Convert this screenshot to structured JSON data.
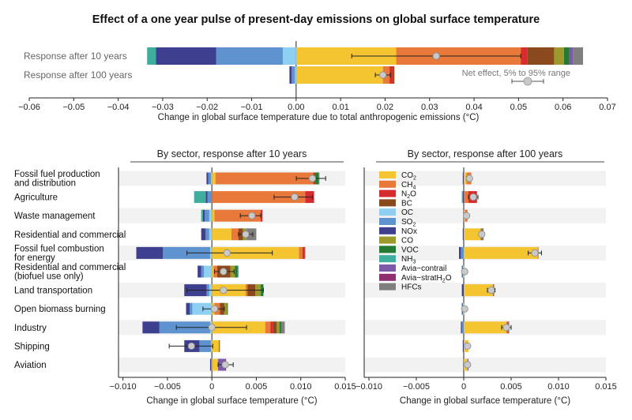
{
  "title": "Effect of a one year pulse of present-day emissions on global surface temperature",
  "colors": {
    "CO2": "#f5c531",
    "CH4": "#e8793a",
    "N2O": "#d62b2f",
    "BC": "#8b4a1e",
    "OC": "#8fd0f2",
    "SO2": "#5e93cf",
    "NOx": "#3f3f8f",
    "CO": "#9c9a2c",
    "VOC": "#227a33",
    "NH3": "#3fae9c",
    "Avia-contrail": "#7c5aa6",
    "Avia-stratH2O": "#8f2f6f",
    "HFCs": "#7f7f7f"
  },
  "legend": {
    "items": [
      {
        "key": "CO2",
        "label": "CO",
        "sub": "2"
      },
      {
        "key": "CH4",
        "label": "CH",
        "sub": "4"
      },
      {
        "key": "N2O",
        "label": "N",
        "sub": "2",
        "post": "O"
      },
      {
        "key": "BC",
        "label": "BC"
      },
      {
        "key": "OC",
        "label": "OC"
      },
      {
        "key": "SO2",
        "label": "SO",
        "sub": "2"
      },
      {
        "key": "NOx",
        "label": "NOx"
      },
      {
        "key": "CO",
        "label": "CO"
      },
      {
        "key": "VOC",
        "label": "VOC"
      },
      {
        "key": "NH3",
        "label": "NH",
        "sub": "3"
      },
      {
        "key": "Avia-contrail",
        "label": "Avia−contrail"
      },
      {
        "key": "Avia-stratH2O",
        "label": "Avia−stratH",
        "sub": "2",
        "post": "O"
      },
      {
        "key": "HFCs",
        "label": "HFCs"
      }
    ]
  },
  "net_effect_label": "Net effect, 5% to 95% range",
  "chart_data": [
    {
      "type": "bar",
      "stacked": "diverging",
      "orientation": "horizontal",
      "xlabel": "Change in global surface temperature due to total anthropogenic emissions (°C)",
      "xlim": [
        -0.06,
        0.07
      ],
      "xticks": [
        -0.06,
        -0.05,
        -0.04,
        -0.03,
        -0.02,
        -0.01,
        0,
        0.01,
        0.02,
        0.03,
        0.04,
        0.05,
        0.06,
        0.07
      ],
      "xtick_labels": [
        "−0.06",
        "−0.05",
        "−0.04",
        "−0.03",
        "−0.02",
        "−0.01",
        "0.00",
        "0.01",
        "0.02",
        "0.03",
        "0.04",
        "0.05",
        "0.06",
        "0.07"
      ],
      "categories": [
        "Response after 10 years",
        "Response after 100 years"
      ],
      "rows": [
        {
          "label": "Response after 10 years",
          "net": 0.0315,
          "range": [
            0.0125,
            0.0505
          ],
          "pos": [
            [
              "CO2",
              0.0225
            ],
            [
              "CH4",
              0.028
            ],
            [
              "N2O",
              0.0015
            ],
            [
              "BC",
              0.006
            ],
            [
              "CO",
              0.0022
            ],
            [
              "VOC",
              0.0012
            ],
            [
              "Avia-contrail",
              0.0008
            ],
            [
              "HFCs",
              0.0023
            ]
          ],
          "neg": [
            [
              "OC",
              0.003
            ],
            [
              "SO2",
              0.015
            ],
            [
              "NOx",
              0.0135
            ],
            [
              "NH3",
              0.002
            ]
          ]
        },
        {
          "label": "Response after 100 years",
          "net": 0.0195,
          "range": [
            0.0178,
            0.0212
          ],
          "pos": [
            [
              "CO2",
              0.0195
            ],
            [
              "CH4",
              0.0015
            ],
            [
              "N2O",
              0.0008
            ],
            [
              "BC",
              0.0003
            ]
          ],
          "neg": [
            [
              "OC",
              0.0003
            ],
            [
              "SO2",
              0.0007
            ],
            [
              "NOx",
              0.0005
            ]
          ]
        }
      ]
    },
    {
      "type": "bar",
      "stacked": "diverging",
      "orientation": "horizontal",
      "title": "By sector, response after 10 years",
      "xlabel": "Change in global surface temperature (°C)",
      "xlim": [
        -0.0105,
        0.015
      ],
      "xticks": [
        -0.01,
        -0.005,
        0,
        0.005,
        0.01,
        0.015
      ],
      "xtick_labels": [
        "−0.010",
        "−0.005",
        "0",
        "0.005",
        "0.010",
        "0.015"
      ],
      "categories": [
        "Fossil fuel production and distribution",
        "Agriculture",
        "Waste management",
        "Residential and commercial",
        "Fossil fuel combustion for energy",
        "Residential and commercial (biofuel use only)",
        "Land transportation",
        "Open biomass burning",
        "Industry",
        "Shipping",
        "Aviation"
      ],
      "rows": [
        {
          "label": "Fossil fuel production\nand distribution",
          "net": 0.0113,
          "range": [
            0.0095,
            0.0128
          ],
          "pos": [
            [
              "CO2",
              0.0004
            ],
            [
              "CH4",
              0.011
            ],
            [
              "N2O",
              0.0001
            ],
            [
              "BC",
              0.0002
            ],
            [
              "VOC",
              0.0003
            ],
            [
              "HFCs",
              0.0001
            ]
          ],
          "neg": [
            [
              "OC",
              0.0001
            ],
            [
              "SO2",
              0.0003
            ],
            [
              "NOx",
              0.0002
            ]
          ]
        },
        {
          "label": "Agriculture",
          "net": 0.0093,
          "range": [
            0.007,
            0.0113
          ],
          "pos": [
            [
              "CH4",
              0.0105
            ],
            [
              "N2O",
              0.001
            ]
          ],
          "neg": [
            [
              "SO2",
              0.0005
            ],
            [
              "NOx",
              0.0002
            ],
            [
              "NH3",
              0.0013
            ]
          ]
        },
        {
          "label": "Waste management",
          "net": 0.0045,
          "range": [
            0.0032,
            0.0055
          ],
          "pos": [
            [
              "CO2",
              0.0003
            ],
            [
              "CH4",
              0.0052
            ],
            [
              "N2O",
              0.0002
            ]
          ],
          "neg": [
            [
              "OC",
              0.0003
            ],
            [
              "SO2",
              0.0005
            ],
            [
              "NOx",
              0.0002
            ],
            [
              "NH3",
              0.0002
            ]
          ]
        },
        {
          "label": "Residential and commercial",
          "net": 0.0038,
          "range": [
            0.003,
            0.0046
          ],
          "pos": [
            [
              "CO2",
              0.0022
            ],
            [
              "CH4",
              0.0008
            ],
            [
              "BC",
              0.0005
            ],
            [
              "CO",
              0.0004
            ],
            [
              "HFCs",
              0.0011
            ]
          ],
          "neg": [
            [
              "OC",
              0.0003
            ],
            [
              "SO2",
              0.0004
            ],
            [
              "NOx",
              0.0005
            ]
          ]
        },
        {
          "label": "Fossil fuel combustion\nfor energy",
          "net": 0.0017,
          "range": [
            -0.0028,
            0.0068
          ],
          "pos": [
            [
              "CO2",
              0.0098
            ],
            [
              "CH4",
              0.0004
            ],
            [
              "N2O",
              0.0002
            ],
            [
              "BC",
              0.0001
            ]
          ],
          "neg": [
            [
              "OC",
              0.0002
            ],
            [
              "SO2",
              0.0053
            ],
            [
              "NOx",
              0.003
            ]
          ]
        },
        {
          "label": "Residential and commercial\n(biofuel use only)",
          "net": 0.0013,
          "range": [
            0.0003,
            0.0025
          ],
          "pos": [
            [
              "CO2",
              0.0002
            ],
            [
              "CH4",
              0.0004
            ],
            [
              "BC",
              0.0015
            ],
            [
              "CO",
              0.0005
            ],
            [
              "VOC",
              0.0003
            ],
            [
              "NH3",
              0.0001
            ]
          ],
          "neg": [
            [
              "OC",
              0.0009
            ],
            [
              "SO2",
              0.0003
            ],
            [
              "NOx",
              0.0004
            ]
          ]
        },
        {
          "label": "Land transportation",
          "net": 0.0013,
          "range": [
            -0.0028,
            0.0058
          ],
          "pos": [
            [
              "CO2",
              0.0038
            ],
            [
              "CH4",
              0.0002
            ],
            [
              "BC",
              0.0009
            ],
            [
              "CO",
              0.0006
            ],
            [
              "VOC",
              0.0003
            ]
          ],
          "neg": [
            [
              "OC",
              0.0003
            ],
            [
              "SO2",
              0.0003
            ],
            [
              "NOx",
              0.0025
            ]
          ]
        },
        {
          "label": "Open biomass burning",
          "net": 0.0003,
          "range": [
            -0.001,
            0.0014
          ],
          "pos": [
            [
              "CO2",
              0.0003
            ],
            [
              "CH4",
              0.0006
            ],
            [
              "BC",
              0.0005
            ],
            [
              "CO",
              0.0003
            ],
            [
              "VOC",
              0.0001
            ]
          ],
          "neg": [
            [
              "OC",
              0.0022
            ],
            [
              "SO2",
              0.0003
            ],
            [
              "NOx",
              0.0004
            ]
          ]
        },
        {
          "label": "Industry",
          "net": 0.0,
          "range": [
            -0.004,
            0.0039
          ],
          "pos": [
            [
              "CO2",
              0.006
            ],
            [
              "CH4",
              0.0006
            ],
            [
              "N2O",
              0.0003
            ],
            [
              "BC",
              0.0004
            ],
            [
              "CO",
              0.0003
            ],
            [
              "VOC",
              0.0002
            ],
            [
              "HFCs",
              0.0004
            ]
          ],
          "neg": [
            [
              "OC",
              0.0002
            ],
            [
              "SO2",
              0.0057
            ],
            [
              "NOx",
              0.0019
            ]
          ]
        },
        {
          "label": "Shipping",
          "net": -0.0023,
          "range": [
            -0.0048,
            0.0001
          ],
          "pos": [
            [
              "CO2",
              0.0008
            ],
            [
              "BC",
              0.0001
            ]
          ],
          "neg": [
            [
              "OC",
              0.0001
            ],
            [
              "SO2",
              0.0013
            ],
            [
              "NOx",
              0.0017
            ]
          ]
        },
        {
          "label": "Aviation",
          "net": 0.0015,
          "range": [
            0.0007,
            0.0024
          ],
          "pos": [
            [
              "CO2",
              0.0007
            ],
            [
              "Avia-contrail",
              0.0008
            ],
            [
              "Avia-stratH2O",
              0.0001
            ]
          ],
          "neg": [
            [
              "SO2",
              0.0001
            ],
            [
              "NOx",
              0.0001
            ]
          ]
        }
      ]
    },
    {
      "type": "bar",
      "stacked": "diverging",
      "orientation": "horizontal",
      "title": "By sector, response after 100 years",
      "xlabel": "Change in global surface temperature (°C)",
      "xlim": [
        -0.0105,
        0.015
      ],
      "xticks": [
        -0.01,
        -0.005,
        0,
        0.005,
        0.01,
        0.015
      ],
      "xtick_labels": [
        "−0.010",
        "−0.005",
        "0",
        "0.005",
        "0.010",
        "0.015"
      ],
      "categories": [
        "Fossil fuel production and distribution",
        "Agriculture",
        "Waste management",
        "Residential and commercial",
        "Fossil fuel combustion for energy",
        "Residential and commercial (biofuel use only)",
        "Land transportation",
        "Open biomass burning",
        "Industry",
        "Shipping",
        "Aviation"
      ],
      "rows": [
        {
          "label": "Fossil fuel production and distribution",
          "net": 0.0006,
          "range": [
            0.0003,
            0.0008
          ],
          "pos": [
            [
              "CO2",
              0.0003
            ],
            [
              "CH4",
              0.0005
            ]
          ],
          "neg": [
            [
              "NOx",
              0.0001
            ]
          ]
        },
        {
          "label": "Agriculture",
          "net": 0.001,
          "range": [
            0.0005,
            0.0015
          ],
          "pos": [
            [
              "CH4",
              0.0005
            ],
            [
              "N2O",
              0.0009
            ]
          ],
          "neg": [
            [
              "NOx",
              0.0001
            ],
            [
              "NH3",
              0.0001
            ]
          ]
        },
        {
          "label": "Waste management",
          "net": 0.0003,
          "range": [
            0.0001,
            0.0005
          ],
          "pos": [
            [
              "CO2",
              0.0001
            ],
            [
              "CH4",
              0.0003
            ]
          ],
          "neg": []
        },
        {
          "label": "Residential and commercial",
          "net": 0.0019,
          "range": [
            0.0017,
            0.0021
          ],
          "pos": [
            [
              "CO2",
              0.0018
            ],
            [
              "BC",
              0.0001
            ],
            [
              "HFCs",
              0.0002
            ]
          ],
          "neg": [
            [
              "NOx",
              0.0001
            ]
          ]
        },
        {
          "label": "Fossil fuel combustion for energy",
          "net": 0.0075,
          "range": [
            0.0068,
            0.0082
          ],
          "pos": [
            [
              "CO2",
              0.0078
            ],
            [
              "CH4",
              0.0001
            ]
          ],
          "neg": [
            [
              "SO2",
              0.0003
            ],
            [
              "NOx",
              0.0002
            ]
          ]
        },
        {
          "label": "Residential and commercial (biofuel use only)",
          "net": 0.0001,
          "range": [
            0.0,
            0.0002
          ],
          "pos": [
            [
              "CO2",
              0.0001
            ]
          ],
          "neg": [
            [
              "OC",
              0.0001
            ],
            [
              "NOx",
              0.0001
            ]
          ]
        },
        {
          "label": "Land transportation",
          "net": 0.0029,
          "range": [
            0.0025,
            0.0033
          ],
          "pos": [
            [
              "CO2",
              0.0031
            ],
            [
              "BC",
              0.0001
            ]
          ],
          "neg": [
            [
              "NOx",
              0.0002
            ]
          ]
        },
        {
          "label": "Open biomass burning",
          "net": 0.0001,
          "range": [
            -0.0001,
            0.0002
          ],
          "pos": [
            [
              "CO2",
              0.0001
            ]
          ],
          "neg": [
            [
              "OC",
              0.0001
            ],
            [
              "NOx",
              0.0001
            ]
          ]
        },
        {
          "label": "Industry",
          "net": 0.0045,
          "range": [
            0.004,
            0.005
          ],
          "pos": [
            [
              "CO2",
              0.0045
            ],
            [
              "CH4",
              0.0001
            ],
            [
              "N2O",
              0.0001
            ],
            [
              "HFCs",
              0.0001
            ]
          ],
          "neg": [
            [
              "SO2",
              0.0002
            ],
            [
              "NOx",
              0.0001
            ]
          ]
        },
        {
          "label": "Shipping",
          "net": 0.0004,
          "range": [
            0.0002,
            0.0006
          ],
          "pos": [
            [
              "CO2",
              0.0005
            ]
          ],
          "neg": [
            [
              "NOx",
              0.0001
            ]
          ]
        },
        {
          "label": "Aviation",
          "net": 0.0004,
          "range": [
            0.0002,
            0.0006
          ],
          "pos": [
            [
              "CO2",
              0.0004
            ],
            [
              "Avia-contrail",
              0.0001
            ]
          ],
          "neg": []
        }
      ]
    }
  ]
}
